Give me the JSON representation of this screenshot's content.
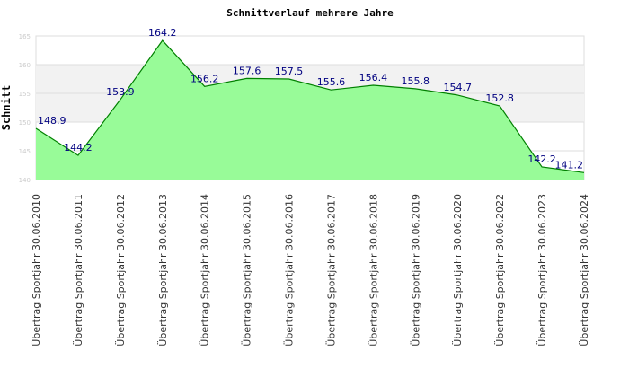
{
  "chart_data": {
    "type": "area",
    "title": "Schnittverlauf mehrere Jahre",
    "ylabel": "Schnitt",
    "xlabel": "",
    "ylim": [
      140,
      165
    ],
    "yticks": [
      140,
      145,
      150,
      155,
      160,
      165
    ],
    "categories": [
      "Übertrag Sportjahr 30.06.2010",
      "Übertrag Sportjahr 30.06.2011",
      "Übertrag Sportjahr 30.06.2012",
      "Übertrag Sportjahr 30.06.2013",
      "Übertrag Sportjahr 30.06.2014",
      "Übertrag Sportjahr 30.06.2015",
      "Übertrag Sportjahr 30.06.2016",
      "Übertrag Sportjahr 30.06.2017",
      "Übertrag Sportjahr 30.06.2018",
      "Übertrag Sportjahr 30.06.2019",
      "Übertrag Sportjahr 30.06.2020",
      "Übertrag Sportjahr 30.06.2022",
      "Übertrag Sportjahr 30.06.2023",
      "Übertrag Sportjahr 30.06.2024"
    ],
    "values": [
      148.9,
      144.2,
      153.9,
      164.2,
      156.2,
      157.6,
      157.5,
      155.6,
      156.4,
      155.8,
      154.7,
      152.8,
      142.2,
      141.2
    ],
    "fill_color": "#98fb98",
    "line_color": "#008000",
    "label_color": "#000080",
    "grid": true
  }
}
